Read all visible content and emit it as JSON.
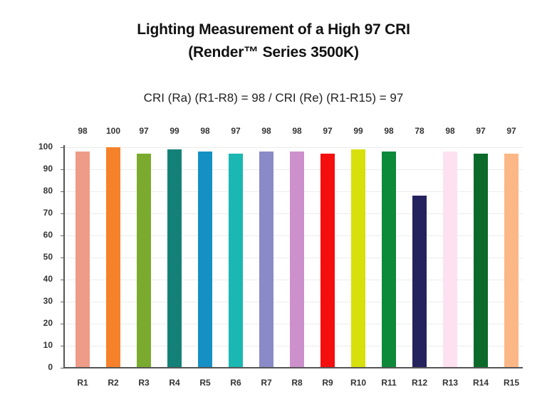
{
  "chart_data": {
    "type": "bar",
    "title": "Lighting Measurement of a High 97 CRI",
    "title_line2": "(Render™ Series 3500K)",
    "subtitle": "CRI (Ra) (R1-R8) = 98 / CRI (Re) (R1-R15) = 97",
    "xlabel": "",
    "ylabel": "",
    "ylim": [
      0,
      100
    ],
    "yticks": [
      0,
      10,
      20,
      30,
      40,
      50,
      60,
      70,
      80,
      90,
      100
    ],
    "grid": true,
    "legend": null,
    "categories": [
      "R1",
      "R2",
      "R3",
      "R4",
      "R5",
      "R6",
      "R7",
      "R8",
      "R9",
      "R10",
      "R11",
      "R12",
      "R13",
      "R14",
      "R15"
    ],
    "values": [
      98,
      100,
      97,
      99,
      98,
      97,
      98,
      98,
      97,
      99,
      98,
      78,
      98,
      97,
      97
    ],
    "data_labels": [
      "98",
      "100",
      "97",
      "99",
      "98",
      "97",
      "98",
      "98",
      "97",
      "99",
      "98",
      "78",
      "98",
      "97",
      "97"
    ],
    "colors": [
      "#ee9b87",
      "#f5822a",
      "#7aab2f",
      "#138178",
      "#1490c4",
      "#1ab7b3",
      "#8a8ac8",
      "#cc90cc",
      "#f40e0e",
      "#d7e00b",
      "#0d8a39",
      "#24235e",
      "#fde1f0",
      "#0b6a2a",
      "#fcb787"
    ]
  }
}
